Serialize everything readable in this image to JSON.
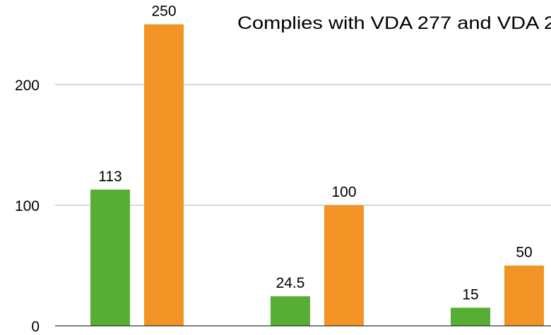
{
  "chart_data": {
    "type": "bar",
    "title": "Complies with VDA 277 and VDA 2",
    "xlabel": "",
    "ylabel": "",
    "ylim": [
      0,
      270
    ],
    "yticks": [
      0,
      100,
      200
    ],
    "grid": true,
    "categories": [
      "",
      "",
      ""
    ],
    "series": [
      {
        "values": [
          113,
          24.5,
          15
        ],
        "color": "#58ad34"
      },
      {
        "values": [
          250,
          100,
          50
        ],
        "color": "#f29425"
      }
    ],
    "data_labels": [
      [
        "113",
        "24.5",
        "15"
      ],
      [
        "250",
        "100",
        "50"
      ]
    ]
  }
}
